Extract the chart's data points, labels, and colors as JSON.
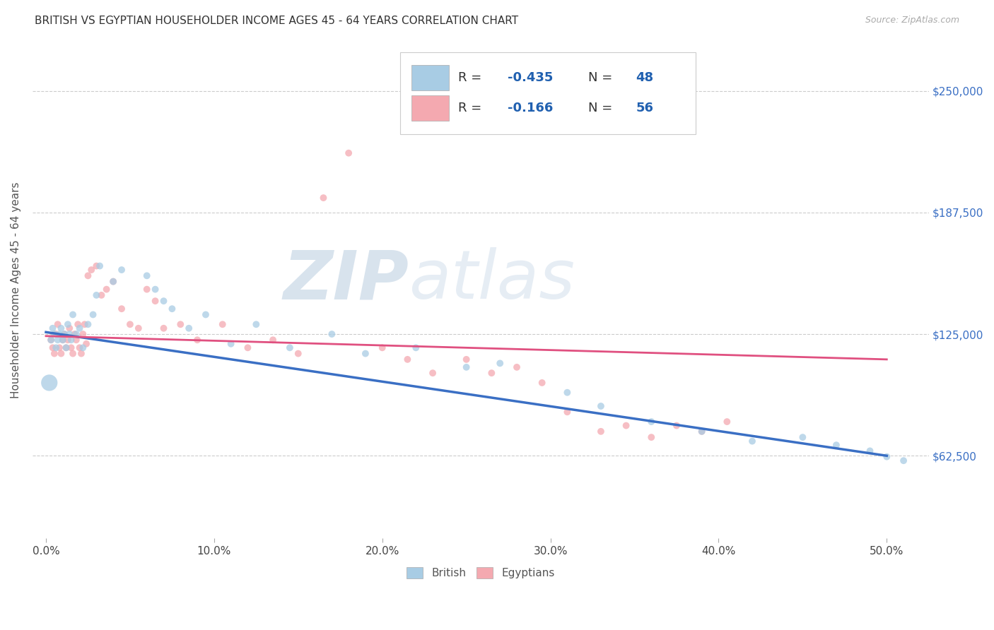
{
  "title": "BRITISH VS EGYPTIAN HOUSEHOLDER INCOME AGES 45 - 64 YEARS CORRELATION CHART",
  "source": "Source: ZipAtlas.com",
  "ylabel": "Householder Income Ages 45 - 64 years",
  "xlabel_ticks": [
    "0.0%",
    "10.0%",
    "20.0%",
    "30.0%",
    "40.0%",
    "50.0%"
  ],
  "xlabel_vals": [
    0.0,
    0.1,
    0.2,
    0.3,
    0.4,
    0.5
  ],
  "ylabel_ticks": [
    "$62,500",
    "$125,000",
    "$187,500",
    "$250,000"
  ],
  "ylabel_vals": [
    62500,
    125000,
    187500,
    250000
  ],
  "xlim": [
    -0.008,
    0.525
  ],
  "ylim": [
    20000,
    275000
  ],
  "british_R": "-0.435",
  "british_N": "48",
  "egyptian_R": "-0.166",
  "egyptian_N": "56",
  "british_color": "#a8cce4",
  "egyptian_color": "#f4a9b0",
  "trendline_british_color": "#3a6fc4",
  "trendline_egyptian_color": "#e05080",
  "watermark_zip": "ZIP",
  "watermark_atlas": "atlas",
  "british_x": [
    0.002,
    0.003,
    0.004,
    0.005,
    0.006,
    0.007,
    0.008,
    0.009,
    0.01,
    0.011,
    0.012,
    0.013,
    0.014,
    0.015,
    0.016,
    0.018,
    0.02,
    0.022,
    0.025,
    0.028,
    0.03,
    0.032,
    0.04,
    0.045,
    0.06,
    0.065,
    0.07,
    0.075,
    0.085,
    0.095,
    0.11,
    0.125,
    0.145,
    0.17,
    0.19,
    0.22,
    0.25,
    0.27,
    0.31,
    0.33,
    0.36,
    0.39,
    0.42,
    0.45,
    0.47,
    0.49,
    0.5,
    0.51
  ],
  "british_y": [
    100000,
    122000,
    128000,
    125000,
    118000,
    122000,
    125000,
    128000,
    122000,
    125000,
    118000,
    130000,
    125000,
    122000,
    135000,
    125000,
    128000,
    118000,
    130000,
    135000,
    145000,
    160000,
    152000,
    158000,
    155000,
    148000,
    142000,
    138000,
    128000,
    135000,
    120000,
    130000,
    118000,
    125000,
    115000,
    118000,
    108000,
    110000,
    95000,
    88000,
    80000,
    75000,
    70000,
    72000,
    68000,
    65000,
    62000,
    60000
  ],
  "british_size": [
    280,
    50,
    50,
    50,
    50,
    50,
    50,
    50,
    50,
    50,
    50,
    50,
    50,
    50,
    50,
    50,
    50,
    50,
    50,
    50,
    50,
    50,
    50,
    50,
    50,
    50,
    50,
    50,
    50,
    50,
    50,
    50,
    50,
    50,
    50,
    50,
    50,
    50,
    50,
    50,
    50,
    50,
    50,
    50,
    50,
    50,
    50,
    50
  ],
  "egyptian_x": [
    0.003,
    0.004,
    0.005,
    0.006,
    0.007,
    0.008,
    0.009,
    0.01,
    0.011,
    0.012,
    0.013,
    0.014,
    0.015,
    0.016,
    0.017,
    0.018,
    0.019,
    0.02,
    0.021,
    0.022,
    0.023,
    0.024,
    0.025,
    0.027,
    0.03,
    0.033,
    0.036,
    0.04,
    0.045,
    0.05,
    0.055,
    0.06,
    0.065,
    0.07,
    0.08,
    0.09,
    0.105,
    0.12,
    0.135,
    0.15,
    0.165,
    0.18,
    0.2,
    0.215,
    0.23,
    0.25,
    0.265,
    0.28,
    0.295,
    0.31,
    0.33,
    0.345,
    0.36,
    0.375,
    0.39,
    0.405
  ],
  "egyptian_y": [
    122000,
    118000,
    115000,
    125000,
    130000,
    118000,
    115000,
    122000,
    125000,
    118000,
    122000,
    128000,
    118000,
    115000,
    125000,
    122000,
    130000,
    118000,
    115000,
    125000,
    130000,
    120000,
    155000,
    158000,
    160000,
    145000,
    148000,
    152000,
    138000,
    130000,
    128000,
    148000,
    142000,
    128000,
    130000,
    122000,
    130000,
    118000,
    122000,
    115000,
    195000,
    218000,
    118000,
    112000,
    105000,
    112000,
    105000,
    108000,
    100000,
    85000,
    75000,
    78000,
    72000,
    78000,
    75000,
    80000
  ],
  "egyptian_size": [
    50,
    50,
    50,
    50,
    50,
    50,
    50,
    50,
    50,
    50,
    50,
    50,
    50,
    50,
    50,
    50,
    50,
    50,
    50,
    50,
    50,
    50,
    50,
    50,
    50,
    50,
    50,
    50,
    50,
    50,
    50,
    50,
    50,
    50,
    50,
    50,
    50,
    50,
    50,
    50,
    50,
    50,
    50,
    50,
    50,
    50,
    50,
    50,
    50,
    50,
    50,
    50,
    50,
    50,
    50,
    50
  ],
  "brit_trend_x": [
    0.0,
    0.5
  ],
  "brit_trend_y": [
    126000,
    62500
  ],
  "egy_trend_x": [
    0.0,
    0.5
  ],
  "egy_trend_y": [
    124000,
    112000
  ]
}
